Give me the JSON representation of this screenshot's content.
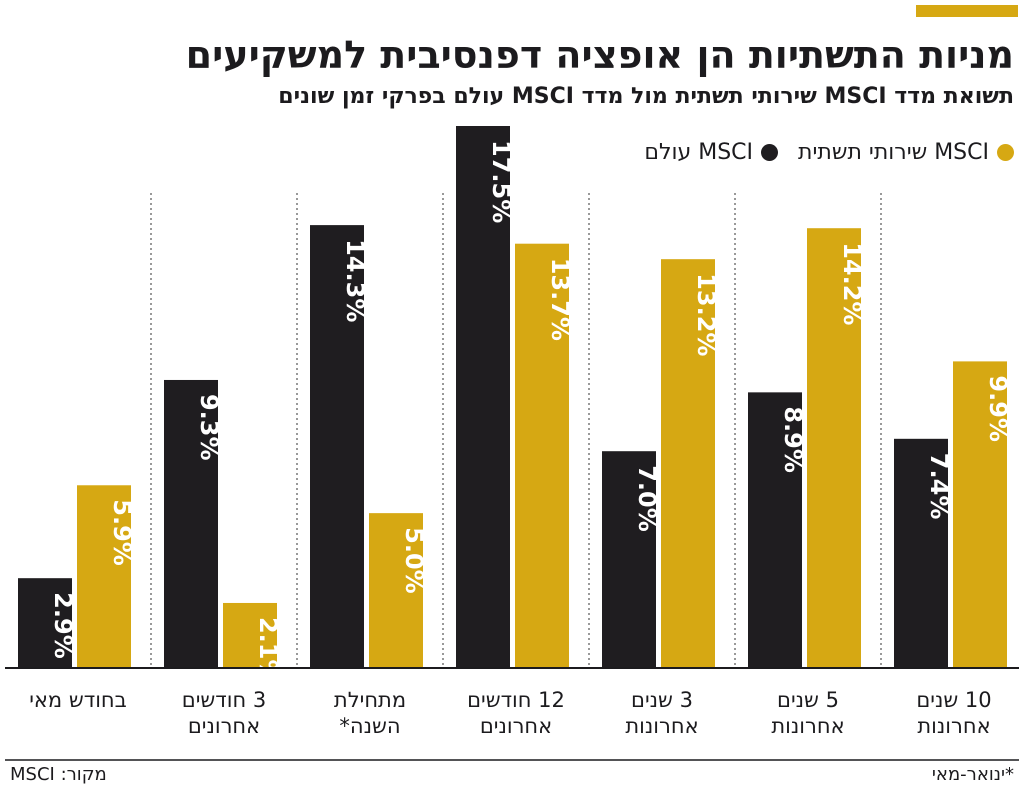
{
  "header": {
    "title": "מניות התשתיות הן אופציה דפנסיבית למשקיעים",
    "subtitle": "תשואת מדד MSCI שירותי תשתית מול מדד MSCI עולם בפרקי זמן שונים"
  },
  "colors": {
    "world": "#1f1d20",
    "infra": "#d6a813",
    "accent": "#d6a813",
    "text": "#1c1b1e"
  },
  "footer": {
    "footnote": "*ינואר-מאי",
    "source": "מקור: MSCI"
  },
  "chart_data": {
    "type": "bar",
    "categories": [
      "בחודש מאי",
      "3 חודשים אחרונים",
      "מתחילת השנה*",
      "12 חודשים אחרונים",
      "3 שנים אחרונות",
      "5 שנים אחרונות",
      "10 שנים אחרונות"
    ],
    "category_lines": [
      [
        "בחודש מאי"
      ],
      [
        "3 חודשים",
        "אחרונים"
      ],
      [
        "מתחילת",
        "השנה*"
      ],
      [
        "12 חודשים",
        "אחרונים"
      ],
      [
        "3 שנים",
        "אחרונות"
      ],
      [
        "5 שנים",
        "אחרונות"
      ],
      [
        "10 שנים",
        "אחרונות"
      ]
    ],
    "series": [
      {
        "name": "MSCI עולם",
        "color": "#1f1d20",
        "values": [
          2.9,
          9.3,
          14.3,
          17.5,
          7.0,
          8.9,
          7.4
        ],
        "labels": [
          "2.9%",
          "9.3%",
          "14.3%",
          "17.5%",
          "7.0%",
          "8.9%",
          "7.4%"
        ]
      },
      {
        "name": "MSCI שירותי תשתית",
        "color": "#d6a813",
        "values": [
          5.9,
          2.1,
          5.0,
          13.7,
          13.2,
          14.2,
          9.9
        ],
        "labels": [
          "5.9%",
          "2.1%",
          "5.0%",
          "13.7%",
          "13.2%",
          "14.2%",
          "9.9%"
        ]
      }
    ],
    "ylim": [
      0,
      17.5
    ],
    "legend": "top-right",
    "grid": false
  }
}
